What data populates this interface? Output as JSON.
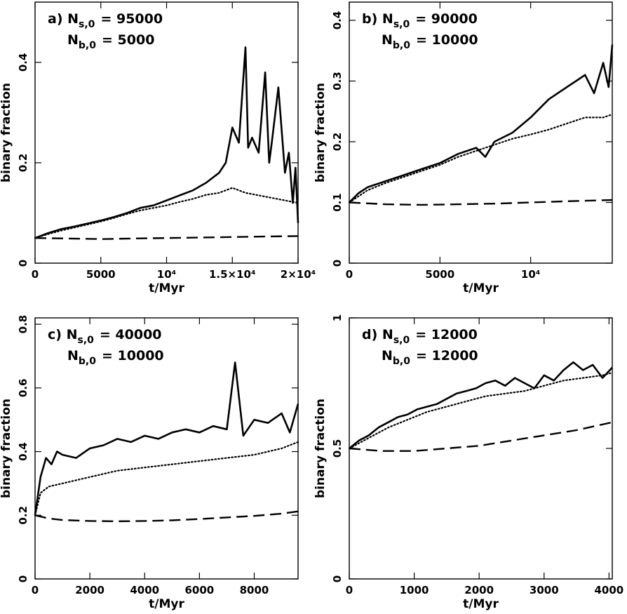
{
  "chart_data": [
    {
      "type": "line",
      "panel": "a",
      "annotation": {
        "tag": "a)",
        "ns_label": "N",
        "ns_sub": "s,0",
        "ns_value": "=  95000",
        "nb_label": "N",
        "nb_sub": "b,0",
        "nb_value": "=    5000"
      },
      "xlabel": "t/Myr",
      "ylabel": "binary fraction",
      "xlim": [
        0,
        20000
      ],
      "ylim": [
        0,
        0.52
      ],
      "xticks": [
        {
          "v": 0,
          "label": "0"
        },
        {
          "v": 5000,
          "label": "5000"
        },
        {
          "v": 10000,
          "label": "10⁴"
        },
        {
          "v": 15000,
          "label": "1.5×10⁴"
        },
        {
          "v": 20000,
          "label": "2×10⁴"
        }
      ],
      "yticks": [
        {
          "v": 0,
          "label": "0"
        },
        {
          "v": 0.2,
          "label": "0.2"
        },
        {
          "v": 0.4,
          "label": "0.4"
        }
      ],
      "series": [
        {
          "style": "solid",
          "x": [
            0,
            1000,
            2000,
            3000,
            4000,
            5000,
            6000,
            7000,
            8000,
            9000,
            10000,
            11000,
            12000,
            13000,
            14000,
            14500,
            15000,
            15500,
            16000,
            16200,
            16500,
            17000,
            17500,
            17800,
            18000,
            18500,
            19000,
            19300,
            19600,
            19800,
            20000
          ],
          "y": [
            0.05,
            0.06,
            0.068,
            0.073,
            0.079,
            0.085,
            0.092,
            0.1,
            0.11,
            0.115,
            0.125,
            0.135,
            0.145,
            0.16,
            0.18,
            0.2,
            0.27,
            0.24,
            0.43,
            0.23,
            0.25,
            0.22,
            0.38,
            0.2,
            0.24,
            0.35,
            0.18,
            0.22,
            0.12,
            0.19,
            0.08
          ]
        },
        {
          "style": "dotted",
          "x": [
            0,
            1000,
            2000,
            3000,
            4000,
            5000,
            6000,
            7000,
            8000,
            9000,
            10000,
            11000,
            12000,
            13000,
            14000,
            15000,
            16000,
            17000,
            18000,
            19000,
            20000
          ],
          "y": [
            0.05,
            0.058,
            0.065,
            0.071,
            0.077,
            0.083,
            0.09,
            0.098,
            0.105,
            0.11,
            0.115,
            0.122,
            0.128,
            0.136,
            0.14,
            0.15,
            0.14,
            0.135,
            0.13,
            0.125,
            0.12
          ]
        },
        {
          "style": "dashed",
          "x": [
            0,
            2500,
            5000,
            7500,
            10000,
            12500,
            15000,
            17500,
            20000
          ],
          "y": [
            0.05,
            0.049,
            0.048,
            0.049,
            0.05,
            0.051,
            0.052,
            0.053,
            0.054
          ]
        }
      ]
    },
    {
      "type": "line",
      "panel": "b",
      "annotation": {
        "tag": "b)",
        "ns_label": "N",
        "ns_sub": "s,0",
        "ns_value": "=  90000",
        "nb_label": "N",
        "nb_sub": "b,0",
        "nb_value": "=  10000"
      },
      "xlabel": "t/Myr",
      "ylabel": "binary fraction",
      "xlim": [
        0,
        14500
      ],
      "ylim": [
        0,
        0.43
      ],
      "xticks": [
        {
          "v": 0,
          "label": "0"
        },
        {
          "v": 5000,
          "label": "5000"
        },
        {
          "v": 10000,
          "label": "10⁴"
        }
      ],
      "yticks": [
        {
          "v": 0,
          "label": "0"
        },
        {
          "v": 0.1,
          "label": "0.1"
        },
        {
          "v": 0.2,
          "label": "0.2"
        },
        {
          "v": 0.3,
          "label": "0.3"
        },
        {
          "v": 0.4,
          "label": "0.4"
        }
      ],
      "series": [
        {
          "style": "solid",
          "x": [
            0,
            500,
            1000,
            2000,
            3000,
            4000,
            5000,
            6000,
            7000,
            7500,
            8000,
            9000,
            10000,
            11000,
            12000,
            12500,
            13000,
            13500,
            14000,
            14300,
            14500
          ],
          "y": [
            0.1,
            0.115,
            0.125,
            0.135,
            0.145,
            0.155,
            0.165,
            0.18,
            0.19,
            0.175,
            0.2,
            0.215,
            0.24,
            0.27,
            0.29,
            0.3,
            0.31,
            0.28,
            0.33,
            0.29,
            0.36
          ]
        },
        {
          "style": "dotted",
          "x": [
            0,
            1000,
            2000,
            3000,
            4000,
            5000,
            6000,
            7000,
            8000,
            9000,
            10000,
            11000,
            12000,
            13000,
            14000,
            14500
          ],
          "y": [
            0.1,
            0.12,
            0.132,
            0.142,
            0.152,
            0.162,
            0.175,
            0.185,
            0.195,
            0.205,
            0.212,
            0.22,
            0.23,
            0.24,
            0.24,
            0.245
          ]
        },
        {
          "style": "dashed",
          "x": [
            0,
            2000,
            4000,
            6000,
            8000,
            10000,
            12000,
            14500
          ],
          "y": [
            0.1,
            0.097,
            0.096,
            0.097,
            0.098,
            0.1,
            0.102,
            0.104
          ]
        }
      ]
    },
    {
      "type": "line",
      "panel": "c",
      "annotation": {
        "tag": "c)",
        "ns_label": "N",
        "ns_sub": "s,0",
        "ns_value": "=  40000",
        "nb_label": "N",
        "nb_sub": "b,0",
        "nb_value": "=  10000"
      },
      "xlabel": "t/Myr",
      "ylabel": "binary fraction",
      "xlim": [
        0,
        9600
      ],
      "ylim": [
        0,
        0.82
      ],
      "xticks": [
        {
          "v": 0,
          "label": "0"
        },
        {
          "v": 2000,
          "label": "2000"
        },
        {
          "v": 4000,
          "label": "4000"
        },
        {
          "v": 6000,
          "label": "6000"
        },
        {
          "v": 8000,
          "label": "8000"
        }
      ],
      "yticks": [
        {
          "v": 0,
          "label": "0"
        },
        {
          "v": 0.2,
          "label": "0.2"
        },
        {
          "v": 0.4,
          "label": "0.4"
        },
        {
          "v": 0.6,
          "label": "0.6"
        },
        {
          "v": 0.8,
          "label": "0.8"
        }
      ],
      "series": [
        {
          "style": "solid",
          "x": [
            0,
            200,
            400,
            600,
            800,
            1000,
            1500,
            2000,
            2500,
            3000,
            3500,
            4000,
            4500,
            5000,
            5500,
            6000,
            6500,
            7000,
            7300,
            7600,
            8000,
            8500,
            9000,
            9300,
            9600
          ],
          "y": [
            0.2,
            0.32,
            0.38,
            0.36,
            0.4,
            0.39,
            0.38,
            0.41,
            0.42,
            0.44,
            0.43,
            0.45,
            0.44,
            0.46,
            0.47,
            0.46,
            0.48,
            0.47,
            0.68,
            0.45,
            0.5,
            0.49,
            0.52,
            0.46,
            0.55
          ]
        },
        {
          "style": "dotted",
          "x": [
            0,
            200,
            500,
            1000,
            2000,
            3000,
            4000,
            5000,
            6000,
            7000,
            8000,
            9000,
            9600
          ],
          "y": [
            0.2,
            0.27,
            0.29,
            0.3,
            0.32,
            0.34,
            0.35,
            0.36,
            0.37,
            0.38,
            0.39,
            0.41,
            0.43
          ]
        },
        {
          "style": "dashed",
          "x": [
            0,
            500,
            1000,
            2000,
            3000,
            4000,
            5000,
            6000,
            7000,
            8000,
            9000,
            9600
          ],
          "y": [
            0.2,
            0.19,
            0.185,
            0.182,
            0.181,
            0.182,
            0.184,
            0.188,
            0.193,
            0.198,
            0.205,
            0.212
          ]
        }
      ]
    },
    {
      "type": "line",
      "panel": "d",
      "annotation": {
        "tag": "d)",
        "ns_label": "N",
        "ns_sub": "s,0",
        "ns_value": "=  12000",
        "nb_label": "N",
        "nb_sub": "b,0",
        "nb_value": "=  12000"
      },
      "xlabel": "t/Myr",
      "ylabel": "binary fraction",
      "xlim": [
        0,
        4050
      ],
      "ylim": [
        0,
        1
      ],
      "xticks": [
        {
          "v": 0,
          "label": "0"
        },
        {
          "v": 1000,
          "label": "1000"
        },
        {
          "v": 2000,
          "label": "2000"
        },
        {
          "v": 3000,
          "label": "3000"
        },
        {
          "v": 4000,
          "label": "4000"
        }
      ],
      "yticks": [
        {
          "v": 0,
          "label": "0"
        },
        {
          "v": 0.5,
          "label": "0.5"
        },
        {
          "v": 1,
          "label": "1"
        }
      ],
      "series": [
        {
          "style": "solid",
          "x": [
            0,
            150,
            300,
            450,
            600,
            750,
            900,
            1050,
            1200,
            1350,
            1500,
            1650,
            1800,
            1950,
            2100,
            2250,
            2400,
            2550,
            2700,
            2850,
            3000,
            3150,
            3300,
            3450,
            3600,
            3750,
            3900,
            4050
          ],
          "y": [
            0.5,
            0.53,
            0.55,
            0.58,
            0.6,
            0.62,
            0.63,
            0.65,
            0.66,
            0.67,
            0.69,
            0.71,
            0.72,
            0.73,
            0.75,
            0.76,
            0.74,
            0.77,
            0.75,
            0.73,
            0.78,
            0.76,
            0.8,
            0.83,
            0.8,
            0.82,
            0.77,
            0.81
          ]
        },
        {
          "style": "dotted",
          "x": [
            0,
            300,
            600,
            900,
            1200,
            1500,
            1800,
            2100,
            2400,
            2700,
            3000,
            3300,
            3600,
            3900,
            4050
          ],
          "y": [
            0.5,
            0.54,
            0.58,
            0.61,
            0.64,
            0.66,
            0.68,
            0.7,
            0.71,
            0.72,
            0.74,
            0.76,
            0.77,
            0.78,
            0.79
          ]
        },
        {
          "style": "dashed",
          "x": [
            0,
            500,
            1000,
            1500,
            2000,
            2500,
            3000,
            3500,
            4050
          ],
          "y": [
            0.5,
            0.49,
            0.49,
            0.5,
            0.51,
            0.53,
            0.55,
            0.57,
            0.6
          ]
        }
      ]
    }
  ]
}
